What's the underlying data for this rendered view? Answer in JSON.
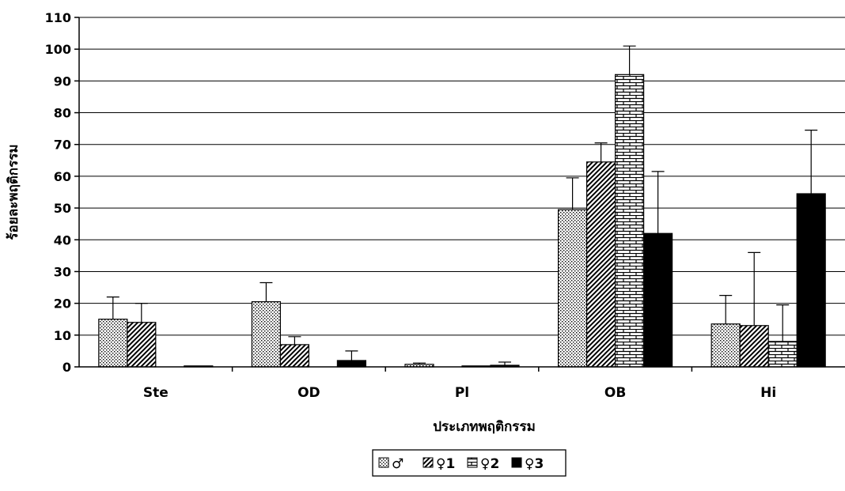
{
  "chart_data": {
    "type": "bar",
    "xlabel": "ประเภทพฤติกรรม",
    "ylabel": "ร้อยละพฤติกรรม",
    "ylim": [
      0,
      110
    ],
    "y_ticks": [
      0,
      10,
      20,
      30,
      40,
      50,
      60,
      70,
      80,
      90,
      100,
      110
    ],
    "grid": true,
    "error_bars": true,
    "legend_position": "bottom-center",
    "categories": [
      "Ste",
      "OD",
      "Pl",
      "OB",
      "Hi"
    ],
    "series": [
      {
        "name": "♂",
        "pattern": "dots",
        "values": [
          15,
          20.5,
          0.8,
          49.5,
          13.5
        ],
        "errors": [
          7,
          6,
          0.4,
          10,
          9
        ]
      },
      {
        "name": "♀1",
        "pattern": "diagonal",
        "values": [
          14,
          7,
          0,
          64.5,
          13
        ],
        "errors": [
          6,
          2.5,
          0,
          6,
          23
        ]
      },
      {
        "name": "♀2",
        "pattern": "brick",
        "values": [
          0,
          0,
          0.3,
          92,
          8
        ],
        "errors": [
          0,
          0,
          0,
          9,
          11.5
        ]
      },
      {
        "name": "♀3",
        "pattern": "solid",
        "values": [
          0.3,
          2,
          0.5,
          42,
          54.5
        ],
        "errors": [
          0,
          3,
          1,
          19.5,
          20
        ]
      }
    ]
  }
}
